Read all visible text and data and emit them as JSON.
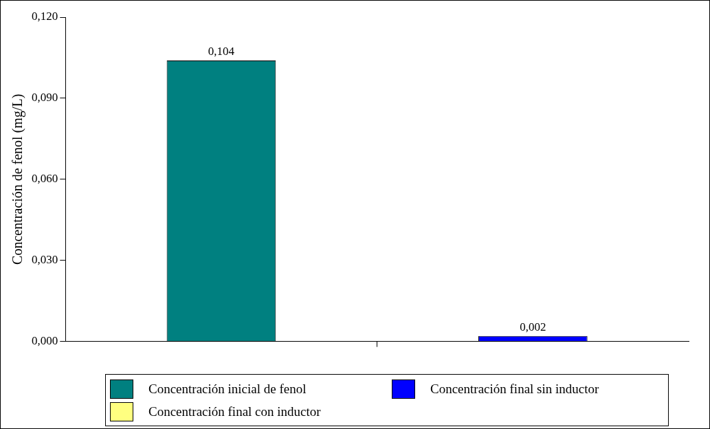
{
  "chart_data": {
    "type": "bar",
    "ylabel": "Concentración de fenol (mg/L)",
    "categories": [
      null
    ],
    "series": [
      {
        "name": "Concentración inicial de fenol",
        "color": "#008080",
        "values": [
          0.104
        ],
        "value_labels": [
          "0,104"
        ]
      },
      {
        "name": "Concentración final sin inductor",
        "color": "#0000ff",
        "values": [
          0.002
        ],
        "value_labels": [
          "0,002"
        ]
      },
      {
        "name": "Concentración final con inductor",
        "color": "#ffff80",
        "values": [
          null
        ],
        "value_labels": [
          null
        ]
      }
    ],
    "ylim": [
      0,
      0.12
    ],
    "yticks": [
      {
        "value": 0,
        "label": "0,000"
      },
      {
        "value": 0.03,
        "label": "0,030"
      },
      {
        "value": 0.06,
        "label": "0,060"
      },
      {
        "value": 0.09,
        "label": "0,090"
      },
      {
        "value": 0.12,
        "label": "0,120"
      }
    ],
    "grid": false,
    "legend": "bottom"
  }
}
